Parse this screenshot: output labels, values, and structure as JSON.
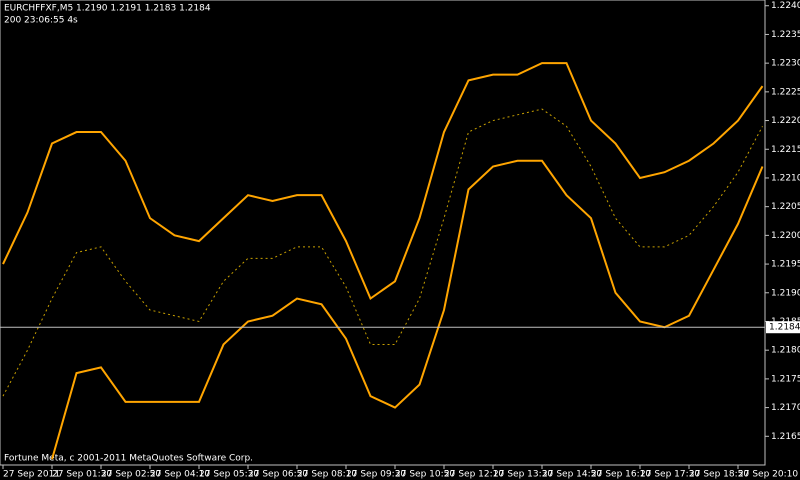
{
  "chart_data": {
    "type": "line",
    "header": [
      "EURCHFFXF,M5  1.2190 1.2191 1.2183 1.2184",
      "200  23:06:55 4s"
    ],
    "footer": "Fortune Meta, c 2001-2011 MetaQuotes Software Corp.",
    "categories": [
      "27 Sep 2011",
      null,
      "27 Sep 01:30",
      null,
      "27 Sep 02:50",
      null,
      "27 Sep 04:10",
      null,
      "27 Sep 05:30",
      null,
      "27 Sep 06:50",
      null,
      "27 Sep 08:10",
      null,
      "27 Sep 09:30",
      null,
      "27 Sep 10:50",
      null,
      "27 Sep 12:10",
      null,
      "27 Sep 13:30",
      null,
      "27 Sep 14:50",
      null,
      "27 Sep 16:10",
      null,
      "27 Sep 17:30",
      null,
      "27 Sep 18:50",
      null,
      "27 Sep 20:10",
      null
    ],
    "series": [
      {
        "color": "#ffa500",
        "style": "solid",
        "values": [
          1.2195,
          1.2204,
          1.2216,
          1.2218,
          1.2218,
          1.2213,
          1.2203,
          1.22,
          1.2199,
          1.2203,
          1.2207,
          1.2206,
          1.2207,
          1.2207,
          1.2199,
          1.2189,
          1.2192,
          1.2203,
          1.2218,
          1.2227,
          1.2228,
          1.2228,
          1.223,
          1.223,
          1.222,
          1.2216,
          1.221,
          1.2211,
          1.2213,
          1.2216,
          1.222,
          1.2226
        ]
      },
      {
        "color": "#ffa500",
        "style": "solid",
        "values": [
          null,
          null,
          1.2161,
          1.2176,
          1.2177,
          1.2171,
          1.2171,
          1.2171,
          1.2171,
          1.2181,
          1.2185,
          1.2186,
          1.2189,
          1.2188,
          1.2182,
          1.2172,
          1.217,
          1.2174,
          1.2187,
          1.2208,
          1.2212,
          1.2213,
          1.2213,
          1.2207,
          1.2203,
          1.219,
          1.2185,
          1.2184,
          1.2186,
          1.2194,
          1.2202,
          1.2212
        ]
      },
      {
        "color": "#c8a000",
        "style": "dashed",
        "values": [
          1.2172,
          1.218,
          1.2189,
          1.2197,
          1.2198,
          1.2192,
          1.2187,
          1.2186,
          1.2185,
          1.2192,
          1.2196,
          1.2196,
          1.2198,
          1.2198,
          1.2191,
          1.2181,
          1.2181,
          1.2189,
          1.2203,
          1.2218,
          1.222,
          1.2221,
          1.2222,
          1.2219,
          1.2212,
          1.2203,
          1.2198,
          1.2198,
          1.22,
          1.2205,
          1.2211,
          1.2219
        ]
      }
    ],
    "current_price": 1.2184,
    "ylim": [
      1.216,
      1.2241
    ],
    "yticks": [
      {
        "value": 1.224,
        "label": "1.2240"
      },
      1.2235,
      {
        "value": 1.223,
        "label": "1.2230"
      },
      1.2225,
      {
        "value": 1.222,
        "label": "1.2220"
      },
      1.2215,
      {
        "value": 1.221,
        "label": "1.2210"
      },
      1.2205,
      {
        "value": 1.22,
        "label": "1.2200"
      },
      1.2195,
      {
        "value": 1.219,
        "label": "1.2190"
      },
      1.2185,
      {
        "value": 1.218,
        "label": "1.2180"
      },
      1.2175,
      {
        "value": 1.217,
        "label": "1.2170"
      },
      1.2165
    ]
  }
}
